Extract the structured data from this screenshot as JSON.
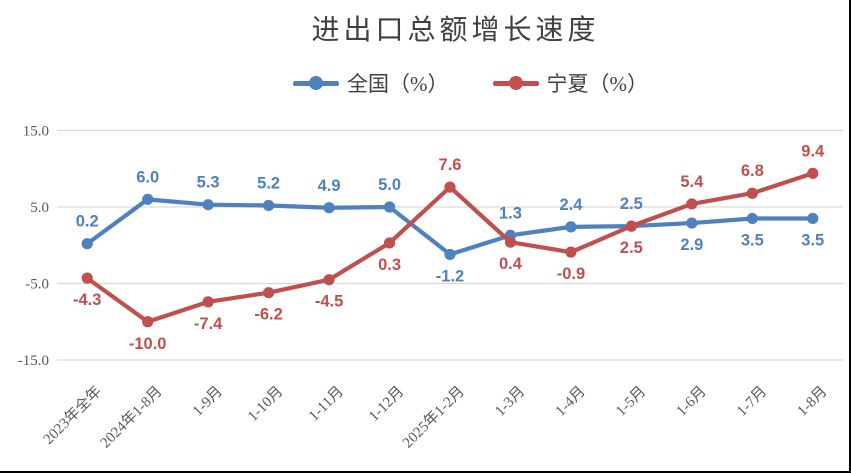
{
  "chart_data": {
    "type": "line",
    "title": "进出口总额增长速度",
    "legend_position": "top",
    "grid": "horizontal-only",
    "grid_color": "#D9D9D9",
    "axis_label_color": "#595959",
    "title_color": "#404040",
    "yticks": [
      15.0,
      5.0,
      -5.0,
      -15.0
    ],
    "ytick_labels": [
      "15.0",
      "5.0",
      "-5.0",
      "-15.0"
    ],
    "ylim": [
      -15.0,
      15.0
    ],
    "categories": [
      "2023年全年",
      "2024年1-8月",
      "1-9月",
      "1-10月",
      "1-11月",
      "1-12月",
      "2025年1-2月",
      "1-3月",
      "1-4月",
      "1-5月",
      "1-6月",
      "1-7月",
      "1-8月"
    ],
    "series": [
      {
        "name": "全国（%）",
        "color": "#4E81BD",
        "values": [
          0.2,
          6.0,
          5.3,
          5.2,
          4.9,
          5.0,
          -1.2,
          1.3,
          2.4,
          2.5,
          2.9,
          3.5,
          3.5
        ],
        "label_side": [
          "above",
          "above",
          "above",
          "above",
          "above",
          "above",
          "below",
          "above",
          "above",
          "above",
          "below",
          "below",
          "below"
        ]
      },
      {
        "name": "宁夏（%）",
        "color": "#C0504D",
        "values": [
          -4.3,
          -10.0,
          -7.4,
          -6.2,
          -4.5,
          0.3,
          7.6,
          0.4,
          -0.9,
          2.5,
          5.4,
          6.8,
          9.4
        ],
        "label_side": [
          "below",
          "below",
          "below",
          "below",
          "below",
          "below",
          "above",
          "below",
          "below",
          "below",
          "above",
          "above",
          "above"
        ]
      }
    ]
  }
}
